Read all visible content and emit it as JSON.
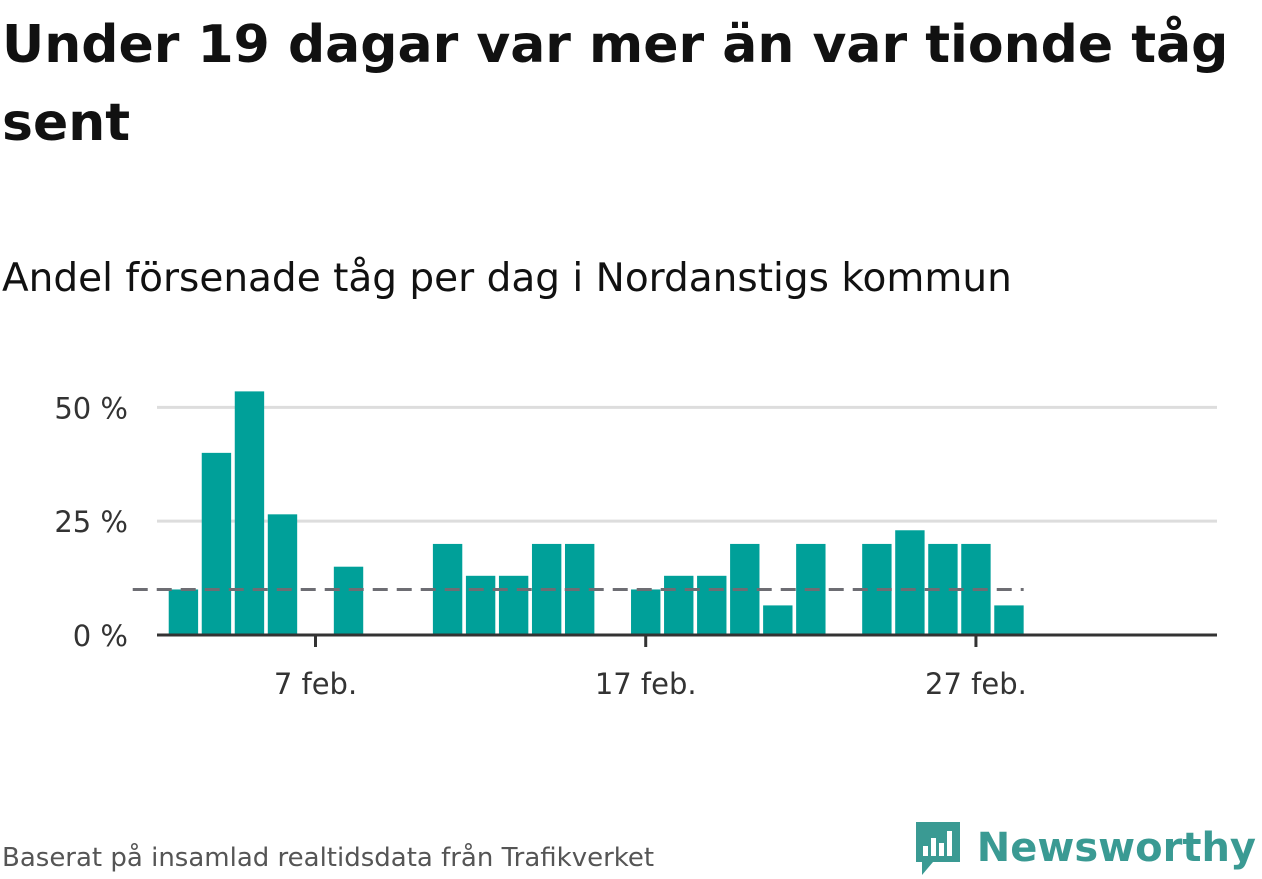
{
  "title": "Under 19 dagar var mer än var tionde tåg sent",
  "subtitle": "Andel försenade tåg per dag i Nordanstigs kommun",
  "source": "Baserat på insamlad realtidsdata från Trafikverket",
  "brand": "Newsworthy",
  "brand_logo_icon": "newsworthy-bar-chart-speech-bubble-icon",
  "colors": {
    "bar": "#00a099",
    "reference_line": "#6d6d73",
    "grid": "#dddddd",
    "axis": "#333333",
    "brand": "#3a9a93"
  },
  "chart_data": {
    "type": "bar",
    "title": "Andel försenade tåg per dag i Nordanstigs kommun",
    "xlabel": "",
    "ylabel": "",
    "x_unit": "date (February)",
    "x": [
      3,
      4,
      5,
      6,
      7,
      8,
      9,
      10,
      11,
      12,
      13,
      14,
      15,
      16,
      17,
      18,
      19,
      20,
      21,
      22,
      23,
      24,
      25,
      26,
      27,
      28
    ],
    "values": [
      10,
      40,
      53.5,
      26.5,
      0,
      15,
      0,
      0,
      20,
      13,
      13,
      20,
      20,
      0,
      10,
      13,
      13,
      20,
      6.5,
      20,
      0,
      20,
      23,
      20,
      20,
      6.5
    ],
    "reference_line": {
      "value": 10,
      "style": "dashed"
    },
    "x_ticks": [
      {
        "value": 7,
        "label": "7 feb."
      },
      {
        "value": 17,
        "label": "17 feb."
      },
      {
        "value": 27,
        "label": "27 feb."
      }
    ],
    "y_ticks": [
      {
        "value": 0,
        "label": "0 %"
      },
      {
        "value": 25,
        "label": "25 %"
      },
      {
        "value": 50,
        "label": "50 %"
      }
    ],
    "ylim": [
      0,
      56
    ],
    "xlim": [
      -0.8,
      31.3
    ],
    "grid": true,
    "legend": "none"
  }
}
